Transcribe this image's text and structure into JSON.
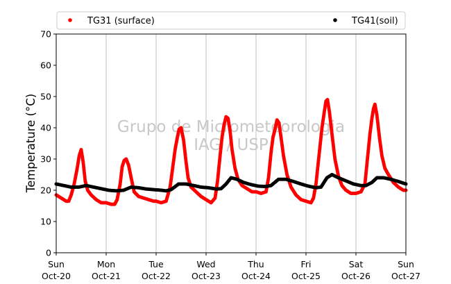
{
  "chart_data": {
    "type": "scatter",
    "ylabel": "Temperature (°C)",
    "xlabel": "",
    "ylim": [
      0,
      70
    ],
    "yticks": [
      0,
      10,
      20,
      30,
      40,
      50,
      60,
      70
    ],
    "xlim": [
      0,
      7
    ],
    "xticks": [
      {
        "x": 0,
        "day": "Sun",
        "date": "Oct-20"
      },
      {
        "x": 1,
        "day": "Mon",
        "date": "Oct-21"
      },
      {
        "x": 2,
        "day": "Tue",
        "date": "Oct-22"
      },
      {
        "x": 3,
        "day": "Wed",
        "date": "Oct-23"
      },
      {
        "x": 4,
        "day": "Thu",
        "date": "Oct-24"
      },
      {
        "x": 5,
        "day": "Fri",
        "date": "Oct-25"
      },
      {
        "x": 6,
        "day": "Sat",
        "date": "Oct-26"
      },
      {
        "x": 7,
        "day": "Sun",
        "date": "Oct-27"
      }
    ],
    "grid": "vertical",
    "legend_placement": "top",
    "watermark": [
      "Grupo de Micrometeorologia",
      "IAG / USP"
    ],
    "series": [
      {
        "name": "TG31 (surface)",
        "color": "#ff0000",
        "points": [
          [
            0.0,
            18.5
          ],
          [
            0.1,
            17.5
          ],
          [
            0.2,
            16.5
          ],
          [
            0.25,
            16.5
          ],
          [
            0.3,
            18.5
          ],
          [
            0.36,
            22
          ],
          [
            0.42,
            27
          ],
          [
            0.46,
            31
          ],
          [
            0.5,
            33
          ],
          [
            0.54,
            29
          ],
          [
            0.58,
            23
          ],
          [
            0.63,
            20
          ],
          [
            0.7,
            18.5
          ],
          [
            0.8,
            17
          ],
          [
            0.9,
            16
          ],
          [
            1.0,
            16
          ],
          [
            1.1,
            15.5
          ],
          [
            1.17,
            15.5
          ],
          [
            1.22,
            17
          ],
          [
            1.28,
            22
          ],
          [
            1.32,
            27.5
          ],
          [
            1.36,
            29.5
          ],
          [
            1.4,
            30
          ],
          [
            1.45,
            28
          ],
          [
            1.5,
            24
          ],
          [
            1.56,
            19.5
          ],
          [
            1.65,
            18
          ],
          [
            1.75,
            17.5
          ],
          [
            1.85,
            17
          ],
          [
            1.95,
            16.5
          ],
          [
            2.0,
            16.5
          ],
          [
            2.1,
            16
          ],
          [
            2.2,
            16.5
          ],
          [
            2.28,
            21
          ],
          [
            2.33,
            27
          ],
          [
            2.38,
            33
          ],
          [
            2.42,
            36.5
          ],
          [
            2.46,
            39.5
          ],
          [
            2.5,
            40
          ],
          [
            2.55,
            36
          ],
          [
            2.6,
            29
          ],
          [
            2.64,
            24
          ],
          [
            2.7,
            21
          ],
          [
            2.8,
            19.5
          ],
          [
            2.9,
            18
          ],
          [
            3.0,
            17
          ],
          [
            3.1,
            16
          ],
          [
            3.18,
            17.5
          ],
          [
            3.23,
            23
          ],
          [
            3.28,
            31
          ],
          [
            3.32,
            37
          ],
          [
            3.36,
            41
          ],
          [
            3.4,
            43.5
          ],
          [
            3.44,
            43
          ],
          [
            3.48,
            39
          ],
          [
            3.52,
            33
          ],
          [
            3.58,
            27
          ],
          [
            3.64,
            23.5
          ],
          [
            3.72,
            21.5
          ],
          [
            3.82,
            20.5
          ],
          [
            3.92,
            19.5
          ],
          [
            4.0,
            19.5
          ],
          [
            4.1,
            19
          ],
          [
            4.2,
            19.5
          ],
          [
            4.25,
            24
          ],
          [
            4.3,
            32
          ],
          [
            4.34,
            37
          ],
          [
            4.38,
            39.5
          ],
          [
            4.42,
            42.5
          ],
          [
            4.46,
            41.5
          ],
          [
            4.5,
            37
          ],
          [
            4.55,
            31
          ],
          [
            4.62,
            25
          ],
          [
            4.7,
            21
          ],
          [
            4.8,
            18.5
          ],
          [
            4.9,
            17
          ],
          [
            5.0,
            16.5
          ],
          [
            5.1,
            16
          ],
          [
            5.15,
            17.5
          ],
          [
            5.2,
            22
          ],
          [
            5.26,
            31
          ],
          [
            5.32,
            40
          ],
          [
            5.37,
            45.5
          ],
          [
            5.4,
            48.5
          ],
          [
            5.43,
            49
          ],
          [
            5.47,
            45
          ],
          [
            5.52,
            38
          ],
          [
            5.58,
            30
          ],
          [
            5.65,
            24.5
          ],
          [
            5.72,
            21.5
          ],
          [
            5.8,
            20
          ],
          [
            5.9,
            19
          ],
          [
            6.0,
            19
          ],
          [
            6.1,
            19.5
          ],
          [
            6.18,
            22
          ],
          [
            6.23,
            30
          ],
          [
            6.28,
            38
          ],
          [
            6.32,
            43
          ],
          [
            6.35,
            46
          ],
          [
            6.38,
            47.5
          ],
          [
            6.42,
            44
          ],
          [
            6.47,
            37
          ],
          [
            6.52,
            31
          ],
          [
            6.58,
            27
          ],
          [
            6.65,
            25
          ],
          [
            6.75,
            22.5
          ],
          [
            6.85,
            21
          ],
          [
            6.95,
            20
          ],
          [
            7.0,
            20
          ]
        ]
      },
      {
        "name": "TG41(soil)",
        "color": "#000000",
        "points": [
          [
            0.0,
            22
          ],
          [
            0.15,
            21.5
          ],
          [
            0.3,
            21
          ],
          [
            0.45,
            21
          ],
          [
            0.6,
            21.5
          ],
          [
            0.75,
            21
          ],
          [
            0.9,
            20.5
          ],
          [
            1.05,
            20
          ],
          [
            1.2,
            19.8
          ],
          [
            1.35,
            20
          ],
          [
            1.5,
            21
          ],
          [
            1.65,
            20.8
          ],
          [
            1.8,
            20.4
          ],
          [
            1.95,
            20.2
          ],
          [
            2.1,
            20
          ],
          [
            2.2,
            19.8
          ],
          [
            2.3,
            20.2
          ],
          [
            2.45,
            22
          ],
          [
            2.6,
            22
          ],
          [
            2.75,
            21.5
          ],
          [
            2.9,
            21
          ],
          [
            3.05,
            20.8
          ],
          [
            3.2,
            20.4
          ],
          [
            3.3,
            20.5
          ],
          [
            3.4,
            22
          ],
          [
            3.5,
            24
          ],
          [
            3.62,
            23.5
          ],
          [
            3.75,
            22.5
          ],
          [
            3.9,
            21.8
          ],
          [
            4.05,
            21.3
          ],
          [
            4.2,
            21.2
          ],
          [
            4.3,
            21.5
          ],
          [
            4.45,
            23.5
          ],
          [
            4.6,
            23.5
          ],
          [
            4.75,
            22.8
          ],
          [
            4.9,
            22
          ],
          [
            5.05,
            21.3
          ],
          [
            5.2,
            20.8
          ],
          [
            5.3,
            21
          ],
          [
            5.42,
            24
          ],
          [
            5.52,
            25
          ],
          [
            5.65,
            24
          ],
          [
            5.8,
            23
          ],
          [
            5.95,
            22
          ],
          [
            6.1,
            21.5
          ],
          [
            6.2,
            21.5
          ],
          [
            6.32,
            22.5
          ],
          [
            6.42,
            24
          ],
          [
            6.55,
            24
          ],
          [
            6.7,
            23.5
          ],
          [
            6.85,
            22.8
          ],
          [
            7.0,
            22
          ]
        ]
      }
    ]
  }
}
